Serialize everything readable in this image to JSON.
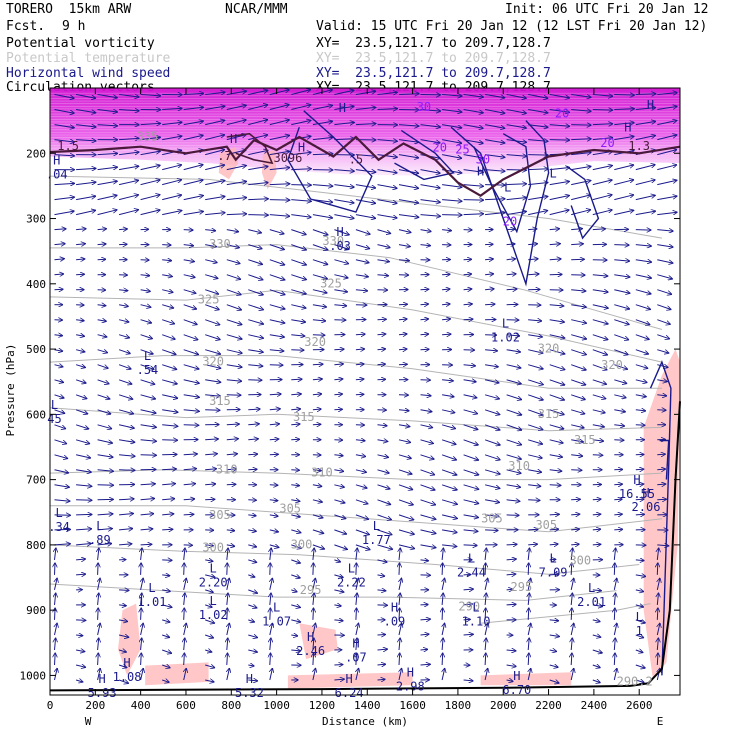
{
  "header": {
    "model": "TORERO  15km ARW",
    "center": "NCAR/MMM",
    "init": "Init: 06 UTC Fri 20 Jan 12",
    "fcst_label": "Fcst.",
    "fcst_value": "9 h",
    "valid": "Valid: 15 UTC Fri 20 Jan 12 (12 LST Fri 20 Jan 12)",
    "fields": [
      {
        "name": "Potential vorticity",
        "xy": "XY=  23.5,121.7 to 209.7,128.7",
        "color": "#000000"
      },
      {
        "name": "Potential temperature",
        "xy": "XY=  23.5,121.7 to 209.7,128.7",
        "color": "#c8c8c8"
      },
      {
        "name": "Horizontal wind speed",
        "xy": "XY=  23.5,121.7 to 209.7,128.7",
        "color": "#1a1a8c"
      },
      {
        "name": "Circulation vectors",
        "xy": "XY=  23.5,121.7 to 209.7,128.7",
        "color": "#000000"
      }
    ]
  },
  "chart_data": {
    "type": "cross-section",
    "xlabel": "Distance (km)",
    "ylabel": "Pressure (hPa)",
    "xlim": [
      0,
      2780
    ],
    "ylim": [
      1030,
      100
    ],
    "x_ticks": [
      0,
      200,
      400,
      600,
      800,
      1000,
      1200,
      1400,
      1600,
      1800,
      2000,
      2200,
      2400,
      2600
    ],
    "y_ticks": [
      200,
      300,
      400,
      500,
      600,
      700,
      800,
      900,
      1000
    ],
    "x_end_labels": {
      "left": "W",
      "right": "E"
    },
    "colors": {
      "vectors": "#1a1a8c",
      "wind_speed_contour": "#1a1a8c",
      "theta_contour": "#b4b4b4",
      "pv_contour": "#4a1a3a",
      "pv_fill": "#ffb4b4",
      "upper_shading": "#e020e0",
      "terrain": "#000000"
    },
    "theta_labels": [
      {
        "text": "335",
        "x": 430,
        "p": 175
      },
      {
        "text": "330",
        "x": 750,
        "p": 340
      },
      {
        "text": "325",
        "x": 700,
        "p": 425
      },
      {
        "text": "320",
        "x": 720,
        "p": 520
      },
      {
        "text": "315",
        "x": 750,
        "p": 580
      },
      {
        "text": "310",
        "x": 780,
        "p": 685
      },
      {
        "text": "305",
        "x": 750,
        "p": 755
      },
      {
        "text": "300",
        "x": 720,
        "p": 805
      },
      {
        "text": "295",
        "x": 1150,
        "p": 870
      },
      {
        "text": "330",
        "x": 1250,
        "p": 335
      },
      {
        "text": "325",
        "x": 1240,
        "p": 400
      },
      {
        "text": "320",
        "x": 1170,
        "p": 490
      },
      {
        "text": "315",
        "x": 1120,
        "p": 605
      },
      {
        "text": "310",
        "x": 1200,
        "p": 690
      },
      {
        "text": "305",
        "x": 1060,
        "p": 745
      },
      {
        "text": "300",
        "x": 1110,
        "p": 800
      },
      {
        "text": "320",
        "x": 2200,
        "p": 500
      },
      {
        "text": "320",
        "x": 2480,
        "p": 525
      },
      {
        "text": "315",
        "x": 2200,
        "p": 600
      },
      {
        "text": "315",
        "x": 2360,
        "p": 640
      },
      {
        "text": "310",
        "x": 2070,
        "p": 680
      },
      {
        "text": "305",
        "x": 1950,
        "p": 760
      },
      {
        "text": "305",
        "x": 2190,
        "p": 770
      },
      {
        "text": "300",
        "x": 2340,
        "p": 825
      },
      {
        "text": "295",
        "x": 2080,
        "p": 865
      },
      {
        "text": "290",
        "x": 1850,
        "p": 895
      },
      {
        "text": "290.2",
        "x": 2580,
        "p": 1010
      }
    ],
    "wind_labels": [
      {
        "text": "30",
        "x": 1650,
        "p": 130
      },
      {
        "text": "20",
        "x": 2260,
        "p": 140
      },
      {
        "text": "20",
        "x": 2460,
        "p": 185
      },
      {
        "text": "20",
        "x": 1720,
        "p": 192
      },
      {
        "text": "30",
        "x": 1910,
        "p": 210
      },
      {
        "text": "20",
        "x": 2030,
        "p": 305
      },
      {
        "text": "25",
        "x": 1820,
        "p": 195
      }
    ],
    "pv_labels": [
      {
        "text": "1.5",
        "x": 80,
        "p": 190
      },
      {
        "text": ".5",
        "x": 1350,
        "p": 210
      },
      {
        "text": "3096",
        "x": 1050,
        "p": 208
      },
      {
        "text": ".7",
        "x": 770,
        "p": 205
      },
      {
        "text": "1.3",
        "x": 2600,
        "p": 190
      }
    ],
    "extrema_labels": [
      {
        "type": "H",
        "value": ".04",
        "x": 30,
        "p": 220
      },
      {
        "type": "H",
        "value": "",
        "x": 810,
        "p": 187
      },
      {
        "type": "H",
        "value": "",
        "x": 1110,
        "p": 200
      },
      {
        "type": "H",
        "value": "",
        "x": 1290,
        "p": 140
      },
      {
        "type": "H",
        "value": ".03",
        "x": 1280,
        "p": 330
      },
      {
        "type": "H",
        "value": "",
        "x": 1900,
        "p": 237
      },
      {
        "type": "H",
        "value": "",
        "x": 2550,
        "p": 170
      },
      {
        "type": "H",
        "value": "",
        "x": 2650,
        "p": 135
      },
      {
        "type": "L",
        "value": "",
        "x": 2020,
        "p": 262
      },
      {
        "type": "L",
        "value": "",
        "x": 2220,
        "p": 240
      },
      {
        "type": "L",
        "value": "1.02",
        "x": 2010,
        "p": 470
      },
      {
        "type": "L",
        "value": ".54",
        "x": 430,
        "p": 520
      },
      {
        "type": "L",
        "value": ".34",
        "x": 40,
        "p": 760
      },
      {
        "type": "L",
        "value": ".89",
        "x": 220,
        "p": 780
      },
      {
        "type": "L",
        "value": "1.01",
        "x": 450,
        "p": 875
      },
      {
        "type": "L",
        "value": "2.20",
        "x": 720,
        "p": 845
      },
      {
        "type": "L",
        "value": "1.02",
        "x": 720,
        "p": 895
      },
      {
        "type": "L",
        "value": "1.07",
        "x": 1000,
        "p": 905
      },
      {
        "type": "L",
        "value": "2.22",
        "x": 1330,
        "p": 845
      },
      {
        "type": "L",
        "value": "1.77",
        "x": 1440,
        "p": 780
      },
      {
        "type": "L",
        "value": "2.44",
        "x": 1860,
        "p": 830
      },
      {
        "type": "L",
        "value": "1.10",
        "x": 1880,
        "p": 905
      },
      {
        "type": "L",
        "value": "7.09",
        "x": 2220,
        "p": 830
      },
      {
        "type": "L",
        "value": "2.01",
        "x": 2390,
        "p": 875
      },
      {
        "type": "H",
        "value": ".09",
        "x": 1520,
        "p": 905
      },
      {
        "type": "H",
        "value": "2.46",
        "x": 1150,
        "p": 950
      },
      {
        "type": "H",
        "value": ".07",
        "x": 1350,
        "p": 960
      },
      {
        "type": "H",
        "value": "16.55",
        "x": 2590,
        "p": 710
      },
      {
        "type": "H",
        "value": "2.06",
        "x": 2630,
        "p": 730
      },
      {
        "type": "H",
        "value": "2.98",
        "x": 1590,
        "p": 1005
      },
      {
        "type": "H",
        "value": "6.70",
        "x": 2060,
        "p": 1010
      },
      {
        "type": "H",
        "value": "5.32",
        "x": 880,
        "p": 1015
      },
      {
        "type": "H",
        "value": "6.24",
        "x": 1320,
        "p": 1015
      },
      {
        "type": "H",
        "value": "5.93",
        "x": 230,
        "p": 1015
      },
      {
        "type": "H",
        "value": "1.08",
        "x": 340,
        "p": 990
      },
      {
        "type": "L",
        "value": "1",
        "x": 2600,
        "p": 920
      },
      {
        "type": "L",
        "value": "45",
        "x": 20,
        "p": 595
      }
    ]
  }
}
